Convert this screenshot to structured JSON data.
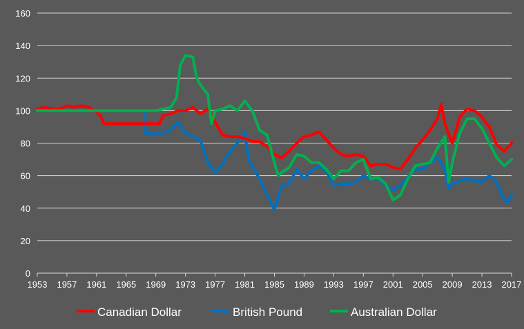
{
  "chart_data": {
    "type": "line",
    "title": "",
    "xlabel": "",
    "ylabel": "",
    "xlim": [
      1953,
      2017
    ],
    "ylim": [
      0,
      160
    ],
    "x_ticks": [
      "1953",
      "1957",
      "1961",
      "1965",
      "1969",
      "1973",
      "1977",
      "1981",
      "1985",
      "1989",
      "1993",
      "1997",
      "2001",
      "2005",
      "2009",
      "2013",
      "2017"
    ],
    "y_ticks": [
      "0",
      "20",
      "40",
      "60",
      "80",
      "100",
      "120",
      "140",
      "160"
    ],
    "grid": "horizontal",
    "legend_position": "bottom",
    "series": [
      {
        "name": "Canadian Dollar",
        "color": "#ff0000",
        "points": [
          [
            1953,
            101
          ],
          [
            1954,
            102
          ],
          [
            1955,
            101
          ],
          [
            1956,
            101
          ],
          [
            1957,
            103
          ],
          [
            1958,
            102
          ],
          [
            1959,
            103
          ],
          [
            1960,
            102
          ],
          [
            1961,
            99
          ],
          [
            1961.5,
            97
          ],
          [
            1962,
            92
          ],
          [
            1963,
            92
          ],
          [
            1965,
            92
          ],
          [
            1967,
            92
          ],
          [
            1968,
            92
          ],
          [
            1969.5,
            92
          ],
          [
            1970,
            97
          ],
          [
            1971,
            98
          ],
          [
            1972,
            100
          ],
          [
            1973,
            100
          ],
          [
            1974,
            102
          ],
          [
            1975,
            98
          ],
          [
            1976,
            101
          ],
          [
            1977,
            93
          ],
          [
            1978,
            85
          ],
          [
            1979,
            84
          ],
          [
            1980,
            84
          ],
          [
            1981,
            83
          ],
          [
            1982,
            81
          ],
          [
            1983,
            81
          ],
          [
            1984,
            78
          ],
          [
            1985,
            73
          ],
          [
            1986,
            71
          ],
          [
            1987,
            75
          ],
          [
            1988,
            80
          ],
          [
            1989,
            84
          ],
          [
            1990,
            85
          ],
          [
            1991,
            87
          ],
          [
            1992,
            82
          ],
          [
            1993,
            77
          ],
          [
            1994,
            73
          ],
          [
            1995,
            72
          ],
          [
            1996,
            73
          ],
          [
            1997,
            72
          ],
          [
            1998,
            66
          ],
          [
            1999,
            67
          ],
          [
            2000,
            67
          ],
          [
            2001,
            65
          ],
          [
            2002,
            64
          ],
          [
            2003,
            70
          ],
          [
            2004,
            77
          ],
          [
            2005,
            82
          ],
          [
            2006,
            88
          ],
          [
            2007,
            95
          ],
          [
            2007.5,
            104
          ],
          [
            2008,
            92
          ],
          [
            2009,
            80
          ],
          [
            2010,
            96
          ],
          [
            2011,
            101
          ],
          [
            2012,
            100
          ],
          [
            2013,
            96
          ],
          [
            2014,
            90
          ],
          [
            2015,
            79
          ],
          [
            2016,
            75
          ],
          [
            2017,
            80
          ]
        ]
      },
      {
        "name": "British Pound",
        "color": "#0070c0",
        "points": [
          [
            1953,
            100
          ],
          [
            1955,
            100
          ],
          [
            1957,
            100
          ],
          [
            1960,
            100
          ],
          [
            1963,
            100
          ],
          [
            1965,
            100
          ],
          [
            1967.5,
            100
          ],
          [
            1967.6,
            86
          ],
          [
            1969,
            86
          ],
          [
            1970,
            86
          ],
          [
            1971,
            88
          ],
          [
            1972,
            93
          ],
          [
            1973,
            86
          ],
          [
            1974,
            84
          ],
          [
            1975,
            82
          ],
          [
            1976,
            68
          ],
          [
            1977,
            62
          ],
          [
            1978,
            67
          ],
          [
            1979,
            75
          ],
          [
            1980,
            80
          ],
          [
            1981,
            87
          ],
          [
            1981.5,
            70
          ],
          [
            1982,
            66
          ],
          [
            1983,
            58
          ],
          [
            1984,
            48
          ],
          [
            1985,
            39
          ],
          [
            1985.5,
            47
          ],
          [
            1986,
            54
          ],
          [
            1987,
            55
          ],
          [
            1988,
            64
          ],
          [
            1989,
            58
          ],
          [
            1990,
            63
          ],
          [
            1991,
            66
          ],
          [
            1992,
            63
          ],
          [
            1993,
            54
          ],
          [
            1994,
            55
          ],
          [
            1995,
            55
          ],
          [
            1996,
            56
          ],
          [
            1997,
            60
          ],
          [
            1998,
            58
          ],
          [
            1999,
            58
          ],
          [
            2000,
            54
          ],
          [
            2001,
            51
          ],
          [
            2002,
            54
          ],
          [
            2003,
            59
          ],
          [
            2004,
            64
          ],
          [
            2005,
            64
          ],
          [
            2006,
            68
          ],
          [
            2007,
            71
          ],
          [
            2008,
            64
          ],
          [
            2008.5,
            52
          ],
          [
            2009,
            55
          ],
          [
            2010,
            57
          ],
          [
            2011,
            58
          ],
          [
            2012,
            57
          ],
          [
            2013,
            56
          ],
          [
            2014,
            60
          ],
          [
            2015,
            56
          ],
          [
            2016,
            45
          ],
          [
            2016.5,
            44
          ],
          [
            2017,
            48
          ]
        ]
      },
      {
        "name": "Australian Dollar",
        "color": "#00b050",
        "points": [
          [
            1953,
            100
          ],
          [
            1955,
            100
          ],
          [
            1957,
            100
          ],
          [
            1960,
            100
          ],
          [
            1963,
            100
          ],
          [
            1965,
            100
          ],
          [
            1967,
            100
          ],
          [
            1969,
            100
          ],
          [
            1970,
            101
          ],
          [
            1971,
            102
          ],
          [
            1971.8,
            108
          ],
          [
            1972.3,
            128
          ],
          [
            1973,
            134
          ],
          [
            1974,
            133
          ],
          [
            1974.5,
            120
          ],
          [
            1975,
            116
          ],
          [
            1976,
            110
          ],
          [
            1976.5,
            92
          ],
          [
            1977,
            100
          ],
          [
            1978,
            101
          ],
          [
            1979,
            103
          ],
          [
            1980,
            100
          ],
          [
            1981,
            106
          ],
          [
            1982,
            100
          ],
          [
            1983,
            88
          ],
          [
            1984,
            85
          ],
          [
            1985,
            68
          ],
          [
            1985.5,
            60
          ],
          [
            1986,
            62
          ],
          [
            1987,
            65
          ],
          [
            1988,
            73
          ],
          [
            1989,
            72
          ],
          [
            1990,
            68
          ],
          [
            1991,
            68
          ],
          [
            1992,
            64
          ],
          [
            1993,
            58
          ],
          [
            1994,
            63
          ],
          [
            1995,
            63
          ],
          [
            1996,
            68
          ],
          [
            1997,
            70
          ],
          [
            1998,
            58
          ],
          [
            1999,
            59
          ],
          [
            2000,
            55
          ],
          [
            2001,
            45
          ],
          [
            2002,
            48
          ],
          [
            2003,
            58
          ],
          [
            2004,
            66
          ],
          [
            2005,
            67
          ],
          [
            2006,
            68
          ],
          [
            2007,
            77
          ],
          [
            2008,
            84
          ],
          [
            2008.5,
            56
          ],
          [
            2009,
            68
          ],
          [
            2010,
            86
          ],
          [
            2011,
            95
          ],
          [
            2012,
            95
          ],
          [
            2013,
            89
          ],
          [
            2014,
            80
          ],
          [
            2015,
            71
          ],
          [
            2016,
            66
          ],
          [
            2017,
            70
          ]
        ]
      }
    ]
  }
}
